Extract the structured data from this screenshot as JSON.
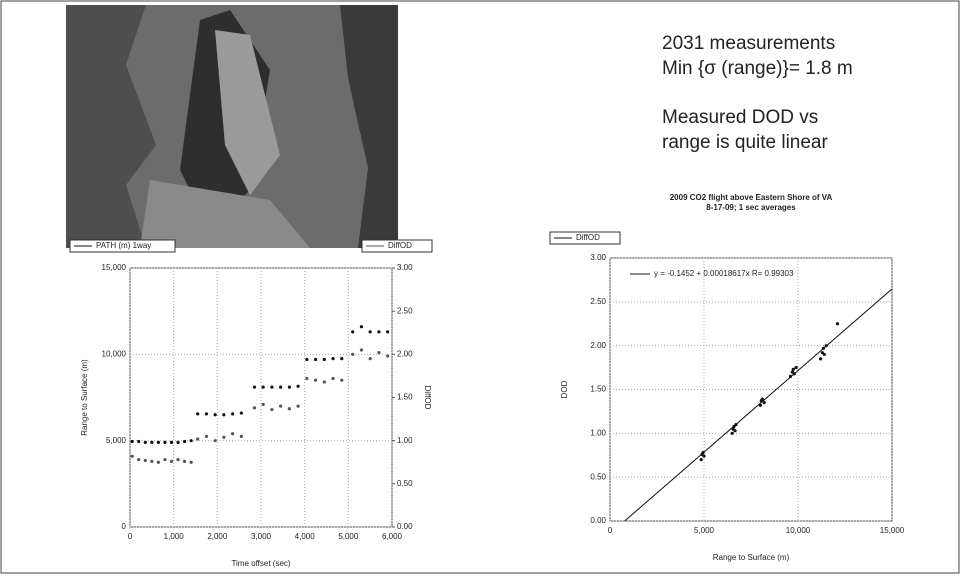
{
  "slide_text": {
    "lines": [
      "2031 measurements",
      "Min {σ (range)}= 1.8 m",
      "Measured DOD vs",
      "range is quite linear"
    ]
  },
  "chart_data": [
    {
      "type": "scatter",
      "xlabel": "Time offset (sec)",
      "ylabel": "Range to Surface (m)",
      "y2label": "DiffOD",
      "xlim": [
        0,
        6000
      ],
      "xticks": [
        0,
        {
          "value": 1000,
          "label": "1,000"
        },
        {
          "value": 2000,
          "label": "2,000"
        },
        {
          "value": 3000,
          "label": "3,000"
        },
        {
          "value": 4000,
          "label": "4,000"
        },
        {
          "value": 5000,
          "label": "5,000"
        },
        {
          "value": 6000,
          "label": "6,000"
        }
      ],
      "ylim": [
        0,
        15000
      ],
      "yticks": [
        0,
        {
          "value": 5000,
          "label": "5,000"
        },
        {
          "value": 10000,
          "label": "10,000"
        },
        {
          "value": 15000,
          "label": "15,000"
        }
      ],
      "y2lim": [
        0,
        3
      ],
      "y2ticks": [
        {
          "value": 0,
          "label": "0.00"
        },
        {
          "value": 0.5,
          "label": "0.50"
        },
        {
          "value": 1,
          "label": "1.00"
        },
        {
          "value": 1.5,
          "label": "1.50"
        },
        {
          "value": 2,
          "label": "2.00"
        },
        {
          "value": 2.5,
          "label": "2.50"
        },
        {
          "value": 3,
          "label": "3.00"
        }
      ],
      "grid": true,
      "series": [
        {
          "name": "PATH (m) 1way",
          "color": "#111",
          "x": [
            50,
            200,
            350,
            500,
            650,
            800,
            950,
            1100,
            1250,
            1400,
            1550,
            1750,
            1950,
            2150,
            2350,
            2550,
            2850,
            3050,
            3250,
            3450,
            3650,
            3850,
            4050,
            4250,
            4450,
            4650,
            4850,
            5100,
            5300,
            5500,
            5700,
            5900
          ],
          "values": [
            4950,
            4950,
            4900,
            4900,
            4900,
            4900,
            4900,
            4900,
            4950,
            5000,
            6550,
            6550,
            6500,
            6500,
            6550,
            6600,
            8100,
            8100,
            8100,
            8100,
            8100,
            8150,
            9700,
            9700,
            9700,
            9750,
            9750,
            11300,
            11600,
            11300,
            11300,
            11300
          ]
        },
        {
          "name": "DiffOD",
          "color": "#555",
          "axis": "y2",
          "x": [
            50,
            200,
            350,
            500,
            650,
            800,
            950,
            1100,
            1250,
            1400,
            1550,
            1750,
            1950,
            2150,
            2350,
            2550,
            2850,
            3050,
            3250,
            3450,
            3650,
            3850,
            4050,
            4250,
            4450,
            4650,
            4850,
            5100,
            5300,
            5500,
            5700,
            5900
          ],
          "values": [
            0.82,
            0.78,
            0.77,
            0.76,
            0.75,
            0.78,
            0.76,
            0.78,
            0.76,
            0.75,
            1.02,
            1.05,
            1.0,
            1.04,
            1.08,
            1.05,
            1.38,
            1.42,
            1.36,
            1.4,
            1.37,
            1.4,
            1.72,
            1.7,
            1.68,
            1.72,
            1.7,
            2.0,
            2.05,
            1.95,
            2.02,
            1.98
          ]
        }
      ]
    },
    {
      "type": "scatter",
      "title": "2009 CO2 flight above Eastern Shore of VA",
      "subtitle": "8-17-09; 1 sec averages",
      "xlabel": "Range to Surface (m)",
      "ylabel": "DOD",
      "xlim": [
        0,
        15000
      ],
      "xticks": [
        0,
        {
          "value": 5000,
          "label": "5,000"
        },
        {
          "value": 10000,
          "label": "10,000"
        },
        {
          "value": 15000,
          "label": "15,000"
        }
      ],
      "ylim": [
        0,
        3
      ],
      "yticks": [
        {
          "value": 0,
          "label": "0.00"
        },
        {
          "value": 0.5,
          "label": "0.50"
        },
        {
          "value": 1,
          "label": "1.00"
        },
        {
          "value": 1.5,
          "label": "1.50"
        },
        {
          "value": 2,
          "label": "2.00"
        },
        {
          "value": 2.5,
          "label": "2.50"
        },
        {
          "value": 3,
          "label": "3.00"
        }
      ],
      "grid": true,
      "series": [
        {
          "name": "DiffOD",
          "color": "#111",
          "x": [
            4850,
            4900,
            4950,
            5000,
            6500,
            6550,
            6600,
            6650,
            6700,
            8000,
            8050,
            8100,
            8200,
            9600,
            9700,
            9750,
            9800,
            9900,
            11200,
            11300,
            11350,
            11400,
            11500,
            12100
          ],
          "values": [
            0.7,
            0.76,
            0.78,
            0.74,
            1.0,
            1.05,
            1.08,
            1.03,
            1.1,
            1.32,
            1.37,
            1.39,
            1.35,
            1.65,
            1.7,
            1.73,
            1.68,
            1.75,
            1.85,
            1.92,
            1.97,
            1.9,
            2.0,
            2.25
          ]
        }
      ],
      "fit": {
        "label": "y = -0.1452 + 0.00018617x   R= 0.99303",
        "x": [
          780,
          15000
        ],
        "values": [
          0,
          2.647
        ]
      }
    }
  ]
}
